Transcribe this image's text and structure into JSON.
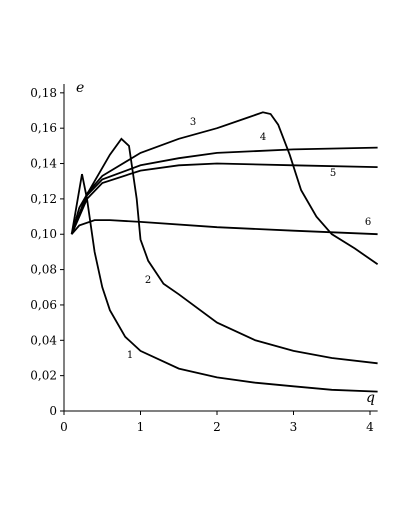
{
  "chart_data": {
    "type": "line",
    "x_label": "q",
    "y_label": "e",
    "xlim": [
      0,
      4.1
    ],
    "ylim": [
      0,
      0.185
    ],
    "xticks": [
      0,
      1,
      2,
      3,
      4
    ],
    "yticks": [
      0,
      {
        "value": 0.02,
        "label": "0,02"
      },
      {
        "value": 0.04,
        "label": "0,04"
      },
      {
        "value": 0.06,
        "label": "0,06"
      },
      {
        "value": 0.08,
        "label": "0,08"
      },
      {
        "value": 0.1,
        "label": "0,10"
      },
      {
        "value": 0.12,
        "label": "0,12"
      },
      {
        "value": 0.14,
        "label": "0,14"
      },
      {
        "value": 0.16,
        "label": "0,16"
      },
      {
        "value": 0.18,
        "label": "0,18"
      }
    ],
    "color": "#000000",
    "series": [
      {
        "name": "1",
        "x": [
          0.1,
          0.235,
          0.3,
          0.4,
          0.5,
          0.6,
          0.8,
          1.0,
          1.5,
          2.0,
          2.5,
          3.0,
          3.5,
          4.1
        ],
        "values": [
          0.1,
          0.134,
          0.12,
          0.09,
          0.07,
          0.057,
          0.042,
          0.034,
          0.024,
          0.019,
          0.016,
          0.014,
          0.012,
          0.011
        ]
      },
      {
        "name": "2",
        "x": [
          0.1,
          0.2,
          0.4,
          0.6,
          0.75,
          0.85,
          0.95,
          1.0,
          1.1,
          1.3,
          1.5,
          2.0,
          2.5,
          3.0,
          3.5,
          4.1
        ],
        "values": [
          0.1,
          0.115,
          0.13,
          0.145,
          0.154,
          0.15,
          0.12,
          0.097,
          0.085,
          0.072,
          0.066,
          0.05,
          0.04,
          0.034,
          0.03,
          0.027
        ]
      },
      {
        "name": "3",
        "x": [
          0.1,
          0.3,
          0.5,
          1.0,
          1.5,
          2.0,
          2.4,
          2.6,
          2.7,
          2.8,
          2.95,
          3.1,
          3.3,
          3.5,
          3.8,
          4.1
        ],
        "values": [
          0.1,
          0.123,
          0.133,
          0.146,
          0.154,
          0.16,
          0.166,
          0.169,
          0.168,
          0.162,
          0.145,
          0.125,
          0.11,
          0.1,
          0.092,
          0.083
        ]
      },
      {
        "name": "4",
        "x": [
          0.1,
          0.3,
          0.5,
          1.0,
          1.5,
          2.0,
          3.0,
          4.1
        ],
        "values": [
          0.1,
          0.122,
          0.131,
          0.139,
          0.143,
          0.146,
          0.148,
          0.149
        ]
      },
      {
        "name": "5",
        "x": [
          0.1,
          0.3,
          0.5,
          1.0,
          1.5,
          2.0,
          3.0,
          4.1
        ],
        "values": [
          0.1,
          0.12,
          0.129,
          0.136,
          0.139,
          0.14,
          0.139,
          0.138
        ]
      },
      {
        "name": "6",
        "x": [
          0.1,
          0.2,
          0.4,
          0.6,
          1.0,
          2.0,
          3.0,
          4.1
        ],
        "values": [
          0.1,
          0.105,
          0.108,
          0.108,
          0.107,
          0.104,
          0.102,
          0.1
        ]
      }
    ]
  }
}
